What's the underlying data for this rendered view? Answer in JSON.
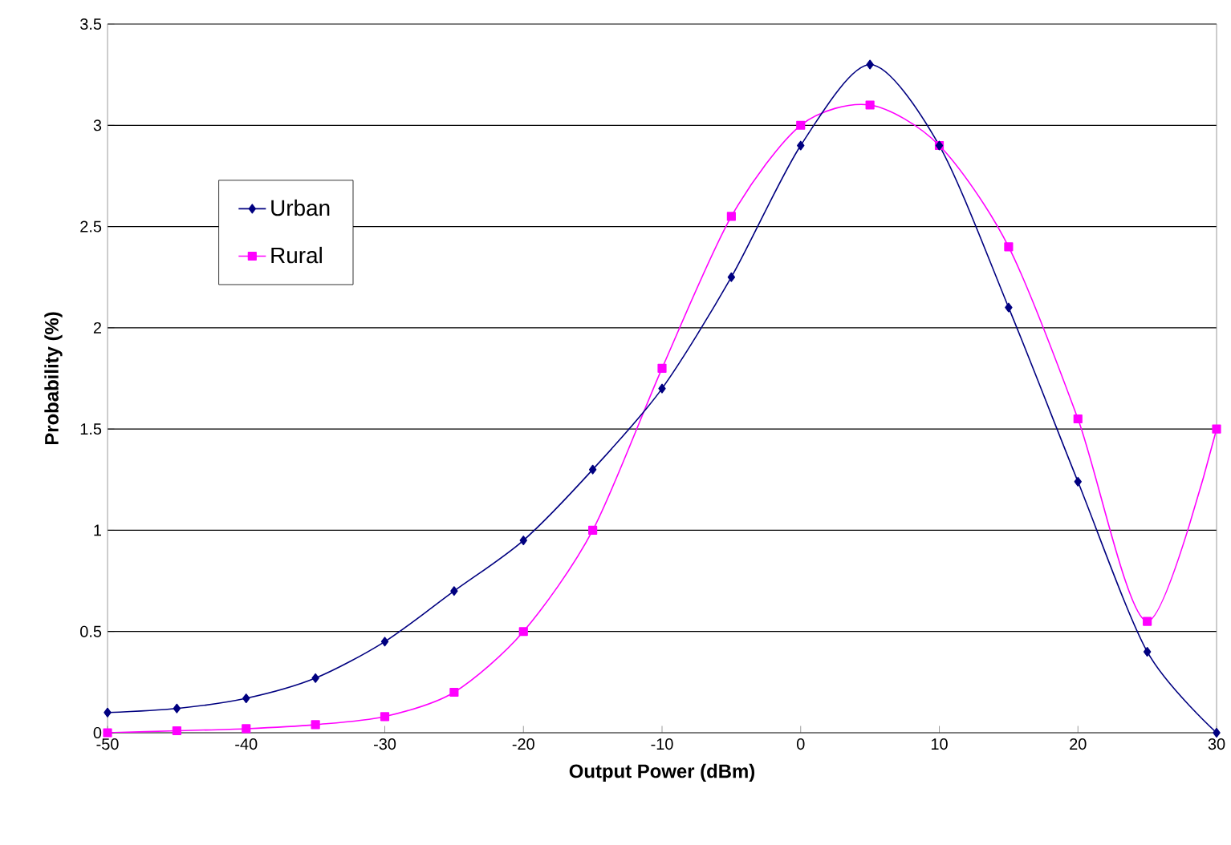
{
  "chart_data": {
    "type": "line",
    "xlabel": "Output Power (dBm)",
    "ylabel": "Probability (%)",
    "x": [
      -50,
      -45,
      -40,
      -35,
      -30,
      -25,
      -20,
      -15,
      -10,
      -5,
      0,
      5,
      10,
      15,
      20,
      25,
      30
    ],
    "series": [
      {
        "name": "Urban",
        "color": "#000080",
        "marker": "diamond",
        "values": [
          0.1,
          0.12,
          0.17,
          0.27,
          0.45,
          0.7,
          0.95,
          1.3,
          1.7,
          2.25,
          2.9,
          3.3,
          2.9,
          2.1,
          1.24,
          0.4,
          0
        ]
      },
      {
        "name": "Rural",
        "color": "#ff00ff",
        "marker": "square",
        "values": [
          0,
          0.01,
          0.02,
          0.04,
          0.08,
          0.2,
          0.5,
          1.0,
          1.8,
          2.55,
          3.0,
          3.1,
          2.9,
          2.4,
          1.55,
          0.55,
          1.5
        ]
      }
    ],
    "xlim": [
      -50,
      30
    ],
    "ylim": [
      0,
      3.5
    ],
    "xticks": [
      -50,
      -40,
      -30,
      -20,
      -10,
      0,
      10,
      20,
      30
    ],
    "yticks": [
      0,
      0.5,
      1,
      1.5,
      2,
      2.5,
      3,
      3.5
    ],
    "grid": "y",
    "legend": "left",
    "line_style": "solid"
  }
}
